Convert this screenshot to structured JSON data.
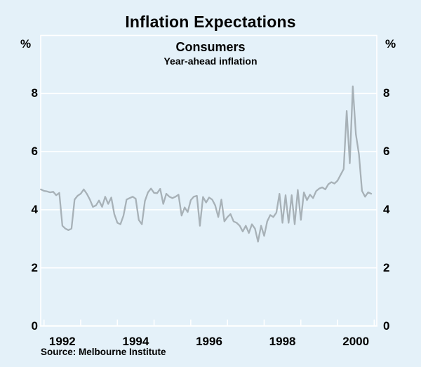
{
  "header": {
    "title": "Inflation Expectations",
    "panel_title": "Consumers",
    "panel_subtitle": "Year-ahead inflation"
  },
  "axes": {
    "unit_left": "%",
    "unit_right": "%"
  },
  "footer": {
    "source": "Source: Melbourne Institute"
  },
  "chart_data": {
    "type": "line",
    "title": "Inflation Expectations",
    "subtitle": "Consumers",
    "series_label": "Year-ahead inflation",
    "unit": "%",
    "ylim": [
      0,
      10
    ],
    "yticks": [
      0,
      2,
      4,
      6,
      8
    ],
    "ytick_sides": "both",
    "xlim_years": [
      1991.91,
      2001.07
    ],
    "xticks_years": [
      1992,
      1993,
      1994,
      1995,
      1996,
      1997,
      1998,
      1999,
      2000,
      2001
    ],
    "xticklabels": [
      {
        "label": "1992",
        "center": 1992.5
      },
      {
        "label": "1994",
        "center": 1994.5
      },
      {
        "label": "1996",
        "center": 1996.5
      },
      {
        "label": "1998",
        "center": 1998.5
      },
      {
        "label": "2000",
        "center": 2000.5
      }
    ],
    "grid": "horizontal-white",
    "legend": "none",
    "colors": {
      "background": "#e4f1f9",
      "grid": "#ffffff",
      "line": "#a7b1b7",
      "text": "#000000"
    },
    "series": [
      {
        "name": "Year-ahead inflation",
        "points": [
          [
            "1991-12",
            4.7
          ],
          [
            "1992-01",
            4.65
          ],
          [
            "1992-02",
            4.63
          ],
          [
            "1992-03",
            4.6
          ],
          [
            "1992-04",
            4.62
          ],
          [
            "1992-05",
            4.5
          ],
          [
            "1992-06",
            4.58
          ],
          [
            "1992-07",
            3.45
          ],
          [
            "1992-08",
            3.35
          ],
          [
            "1992-09",
            3.3
          ],
          [
            "1992-10",
            3.35
          ],
          [
            "1992-11",
            4.35
          ],
          [
            "1992-12",
            4.48
          ],
          [
            "1993-01",
            4.55
          ],
          [
            "1993-02",
            4.7
          ],
          [
            "1993-03",
            4.55
          ],
          [
            "1993-04",
            4.35
          ],
          [
            "1993-05",
            4.1
          ],
          [
            "1993-06",
            4.15
          ],
          [
            "1993-07",
            4.32
          ],
          [
            "1993-08",
            4.1
          ],
          [
            "1993-09",
            4.45
          ],
          [
            "1993-10",
            4.2
          ],
          [
            "1993-11",
            4.42
          ],
          [
            "1993-12",
            3.85
          ],
          [
            "1994-01",
            3.55
          ],
          [
            "1994-02",
            3.5
          ],
          [
            "1994-03",
            3.8
          ],
          [
            "1994-04",
            4.35
          ],
          [
            "1994-05",
            4.4
          ],
          [
            "1994-06",
            4.45
          ],
          [
            "1994-07",
            4.38
          ],
          [
            "1994-08",
            3.65
          ],
          [
            "1994-09",
            3.5
          ],
          [
            "1994-10",
            4.3
          ],
          [
            "1994-11",
            4.6
          ],
          [
            "1994-12",
            4.73
          ],
          [
            "1995-01",
            4.58
          ],
          [
            "1995-02",
            4.57
          ],
          [
            "1995-03",
            4.72
          ],
          [
            "1995-04",
            4.2
          ],
          [
            "1995-05",
            4.55
          ],
          [
            "1995-06",
            4.45
          ],
          [
            "1995-07",
            4.4
          ],
          [
            "1995-08",
            4.45
          ],
          [
            "1995-09",
            4.52
          ],
          [
            "1995-10",
            3.8
          ],
          [
            "1995-11",
            4.08
          ],
          [
            "1995-12",
            3.92
          ],
          [
            "1996-01",
            4.33
          ],
          [
            "1996-02",
            4.45
          ],
          [
            "1996-03",
            4.48
          ],
          [
            "1996-04",
            3.45
          ],
          [
            "1996-05",
            4.44
          ],
          [
            "1996-06",
            4.25
          ],
          [
            "1996-07",
            4.42
          ],
          [
            "1996-08",
            4.35
          ],
          [
            "1996-09",
            4.15
          ],
          [
            "1996-10",
            3.75
          ],
          [
            "1996-11",
            4.35
          ],
          [
            "1996-12",
            3.6
          ],
          [
            "1997-01",
            3.75
          ],
          [
            "1997-02",
            3.85
          ],
          [
            "1997-03",
            3.6
          ],
          [
            "1997-04",
            3.55
          ],
          [
            "1997-05",
            3.45
          ],
          [
            "1997-06",
            3.25
          ],
          [
            "1997-07",
            3.45
          ],
          [
            "1997-08",
            3.2
          ],
          [
            "1997-09",
            3.5
          ],
          [
            "1997-10",
            3.35
          ],
          [
            "1997-11",
            2.9
          ],
          [
            "1997-12",
            3.45
          ],
          [
            "1998-01",
            3.1
          ],
          [
            "1998-02",
            3.6
          ],
          [
            "1998-03",
            3.82
          ],
          [
            "1998-04",
            3.75
          ],
          [
            "1998-05",
            3.9
          ],
          [
            "1998-06",
            4.55
          ],
          [
            "1998-07",
            3.55
          ],
          [
            "1998-08",
            4.5
          ],
          [
            "1998-09",
            3.55
          ],
          [
            "1998-10",
            4.5
          ],
          [
            "1998-11",
            3.5
          ],
          [
            "1998-12",
            4.68
          ],
          [
            "1999-01",
            3.65
          ],
          [
            "1999-02",
            4.6
          ],
          [
            "1999-03",
            4.33
          ],
          [
            "1999-04",
            4.52
          ],
          [
            "1999-05",
            4.4
          ],
          [
            "1999-06",
            4.64
          ],
          [
            "1999-07",
            4.73
          ],
          [
            "1999-08",
            4.77
          ],
          [
            "1999-09",
            4.7
          ],
          [
            "1999-10",
            4.88
          ],
          [
            "1999-11",
            4.95
          ],
          [
            "1999-12",
            4.9
          ],
          [
            "2000-01",
            5.0
          ],
          [
            "2000-02",
            5.2
          ],
          [
            "2000-03",
            5.4
          ],
          [
            "2000-04",
            7.4
          ],
          [
            "2000-05",
            5.6
          ],
          [
            "2000-06",
            8.25
          ],
          [
            "2000-07",
            6.6
          ],
          [
            "2000-08",
            5.9
          ],
          [
            "2000-09",
            4.65
          ],
          [
            "2000-10",
            4.45
          ],
          [
            "2000-11",
            4.6
          ],
          [
            "2000-12",
            4.55
          ]
        ]
      }
    ]
  }
}
